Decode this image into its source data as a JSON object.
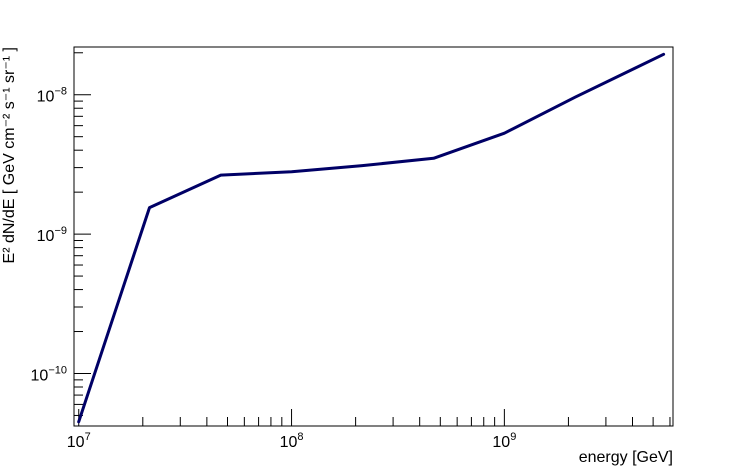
{
  "chart_data": {
    "type": "line",
    "title": "",
    "xlabel": "energy [GeV]",
    "ylabel": "E² dN/dE [ GeV cm⁻² s⁻¹ sr⁻¹ ]",
    "xscale": "log",
    "yscale": "log",
    "xlim": [
      9500000,
      6200000000
    ],
    "ylim": [
      4.2e-11,
      2.2e-08
    ],
    "grid": false,
    "legend": "none",
    "x_ticks": [
      {
        "value": 10000000,
        "base": "10",
        "exp": "7"
      },
      {
        "value": 100000000,
        "base": "10",
        "exp": "8"
      },
      {
        "value": 1000000000,
        "base": "10",
        "exp": "9"
      }
    ],
    "y_ticks": [
      {
        "value": 1e-10,
        "base": "10",
        "exp": "−10"
      },
      {
        "value": 1e-09,
        "base": "10",
        "exp": "−9"
      },
      {
        "value": 1e-08,
        "base": "10",
        "exp": "−8"
      }
    ],
    "series": [
      {
        "color": "#000066",
        "x": [
          10000000,
          21500000,
          46500000,
          100000000,
          215000000,
          465000000,
          1000000000,
          2150000000,
          5600000000
        ],
        "y": [
          4.5e-11,
          1.55e-09,
          2.65e-09,
          2.8e-09,
          3.1e-09,
          3.5e-09,
          5.3e-09,
          9.6e-09,
          1.95e-08
        ]
      }
    ]
  }
}
